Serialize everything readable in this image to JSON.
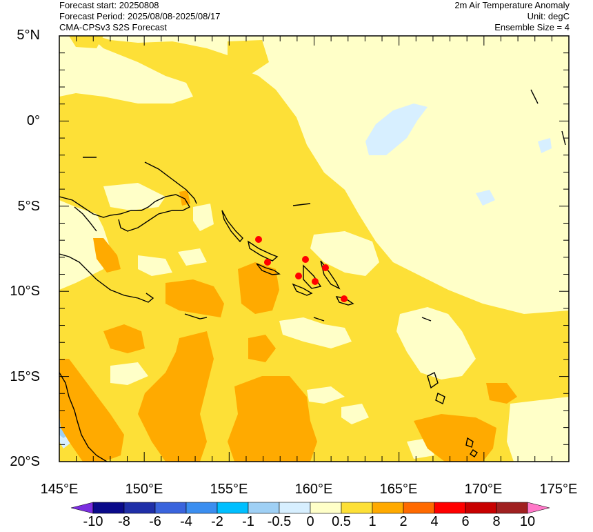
{
  "header": {
    "left": [
      "Forecast start: 20250808",
      "Forecast Period: 2025/08/08-2025/08/17",
      "CMA-CPSv3 S2S Forecast"
    ],
    "right": [
      "2m Air Temperature Anomaly",
      "Unit: degC",
      "Ensemble Size = 4"
    ]
  },
  "axes": {
    "lat_labels": [
      "5°N",
      "0°",
      "5°S",
      "10°S",
      "15°S",
      "20°S"
    ],
    "lon_labels": [
      "145°E",
      "150°E",
      "155°E",
      "160°E",
      "165°E",
      "170°E",
      "175°E"
    ]
  },
  "colorbar": {
    "labels": [
      "-10",
      "-8",
      "-6",
      "-4",
      "-2",
      "-1",
      "-0.5",
      "0",
      "0.5",
      "1",
      "2",
      "4",
      "6",
      "8",
      "10"
    ],
    "colors": [
      "#7b2ee0",
      "#0a0a8a",
      "#1f2fa8",
      "#3a64dd",
      "#3b8ef0",
      "#00bfff",
      "#9fd0f5",
      "#d7efff",
      "#ffffc8",
      "#fde037",
      "#ffaa00",
      "#ff6a00",
      "#ff0000",
      "#c80000",
      "#a02020",
      "#ff78c8"
    ]
  },
  "colors": {
    "anom_0_to_0.5": "#ffffc8",
    "anom_0.5_to_1": "#fde037",
    "anom_1_to_2": "#ffaa00",
    "anom_neg_0.5_to_0": "#d7efff",
    "anom_neg_1_to_neg_0.5": "#9fd0f5",
    "marker": "#ff0000"
  }
}
